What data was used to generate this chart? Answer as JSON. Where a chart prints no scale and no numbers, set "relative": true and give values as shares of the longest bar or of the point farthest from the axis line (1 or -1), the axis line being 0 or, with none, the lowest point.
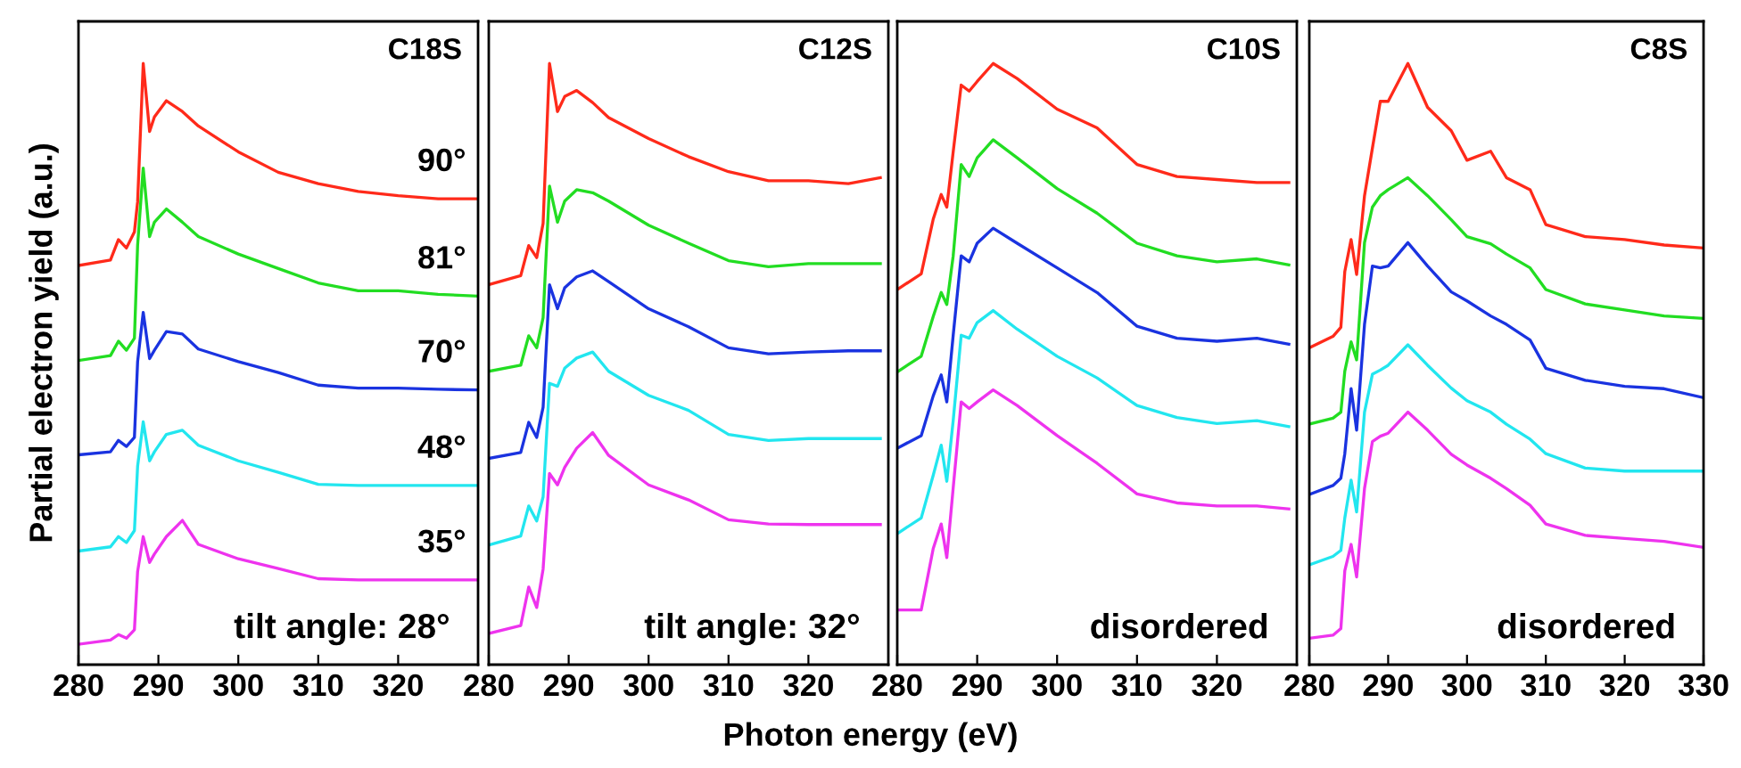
{
  "chart_data": [
    {
      "type": "line",
      "relative": true,
      "xlim": [
        280,
        330
      ],
      "xticks": [
        280,
        290,
        300,
        310,
        320
      ],
      "tick_labels": "x",
      "ylabel": "Partial electron yield (a.u.)",
      "annotations": [
        "C18S",
        "tilt angle: 28°"
      ],
      "line_style": "solid",
      "x": [
        280,
        284,
        285,
        286,
        287,
        287.4,
        288.1,
        288.9,
        289.5,
        291,
        293,
        295,
        300,
        305,
        310,
        315,
        320,
        325,
        330
      ],
      "series": [
        {
          "name": "90°",
          "color": "#ff2a1a",
          "values": [
            0.664,
            0.673,
            0.707,
            0.693,
            0.72,
            0.77,
            1.0,
            0.887,
            0.911,
            0.938,
            0.92,
            0.896,
            0.853,
            0.819,
            0.8,
            0.787,
            0.78,
            0.775,
            0.775
          ]
        },
        {
          "name": "81°",
          "color": "#22dd22",
          "values": [
            0.506,
            0.514,
            0.538,
            0.523,
            0.543,
            0.698,
            0.826,
            0.712,
            0.736,
            0.758,
            0.736,
            0.712,
            0.683,
            0.659,
            0.635,
            0.622,
            0.622,
            0.616,
            0.613
          ]
        },
        {
          "name": "70°",
          "color": "#1a33e0",
          "values": [
            0.349,
            0.354,
            0.373,
            0.363,
            0.378,
            0.504,
            0.586,
            0.509,
            0.523,
            0.554,
            0.55,
            0.525,
            0.504,
            0.486,
            0.465,
            0.46,
            0.46,
            0.458,
            0.457
          ]
        },
        {
          "name": "48°",
          "color": "#22e6ef",
          "values": [
            0.189,
            0.196,
            0.213,
            0.203,
            0.223,
            0.33,
            0.404,
            0.339,
            0.354,
            0.383,
            0.39,
            0.365,
            0.339,
            0.32,
            0.3,
            0.298,
            0.298,
            0.298,
            0.298
          ]
        },
        {
          "name": "35°",
          "color": "#ee33ee",
          "values": [
            0.034,
            0.041,
            0.05,
            0.044,
            0.058,
            0.155,
            0.213,
            0.17,
            0.184,
            0.213,
            0.24,
            0.2,
            0.176,
            0.16,
            0.143,
            0.141,
            0.141,
            0.141,
            0.141
          ]
        }
      ]
    },
    {
      "type": "line",
      "relative": true,
      "xlim": [
        280,
        330
      ],
      "xticks": [
        280,
        290,
        300,
        310,
        320
      ],
      "tick_labels": "x",
      "xlabel": "Photon energy (eV)",
      "annotations": [
        "C12S",
        "tilt angle: 32°"
      ],
      "line_style": "solid",
      "x": [
        280,
        284,
        285,
        286,
        286.8,
        287.6,
        288.6,
        289.5,
        291,
        293,
        295,
        300,
        305,
        310,
        315,
        320,
        325,
        329
      ],
      "series": [
        {
          "color": "#ff2a1a",
          "values": [
            0.632,
            0.647,
            0.697,
            0.677,
            0.734,
            1.0,
            0.92,
            0.945,
            0.955,
            0.935,
            0.91,
            0.875,
            0.845,
            0.82,
            0.805,
            0.805,
            0.8,
            0.81
          ]
        },
        {
          "color": "#22dd22",
          "values": [
            0.488,
            0.498,
            0.547,
            0.527,
            0.577,
            0.796,
            0.736,
            0.771,
            0.79,
            0.785,
            0.771,
            0.731,
            0.701,
            0.672,
            0.662,
            0.667,
            0.667,
            0.667
          ]
        },
        {
          "color": "#1a33e0",
          "values": [
            0.343,
            0.353,
            0.403,
            0.378,
            0.428,
            0.632,
            0.592,
            0.627,
            0.645,
            0.655,
            0.637,
            0.592,
            0.562,
            0.527,
            0.517,
            0.52,
            0.522,
            0.522
          ]
        },
        {
          "color": "#22e6ef",
          "values": [
            0.199,
            0.214,
            0.264,
            0.239,
            0.279,
            0.468,
            0.463,
            0.493,
            0.51,
            0.52,
            0.488,
            0.448,
            0.423,
            0.383,
            0.373,
            0.376,
            0.376,
            0.376
          ]
        },
        {
          "color": "#ee33ee",
          "values": [
            0.052,
            0.065,
            0.129,
            0.095,
            0.159,
            0.318,
            0.299,
            0.328,
            0.36,
            0.386,
            0.348,
            0.299,
            0.274,
            0.241,
            0.234,
            0.233,
            0.233,
            0.233
          ]
        }
      ]
    },
    {
      "type": "line",
      "relative": true,
      "xlim": [
        280,
        330
      ],
      "xticks": [
        280,
        290,
        300,
        310,
        320
      ],
      "tick_labels": "x",
      "annotations": [
        "C10S",
        "disordered"
      ],
      "line_style": "solid",
      "x": [
        280,
        283,
        284.5,
        285.5,
        286.2,
        287,
        288,
        289,
        290,
        292,
        295,
        300,
        305,
        310,
        315,
        320,
        325,
        329
      ],
      "series": [
        {
          "color": "#ff2a1a",
          "values": [
            0.624,
            0.65,
            0.741,
            0.782,
            0.761,
            0.853,
            0.964,
            0.954,
            0.97,
            1.0,
            0.975,
            0.924,
            0.893,
            0.832,
            0.812,
            0.807,
            0.802,
            0.802
          ]
        },
        {
          "color": "#22dd22",
          "values": [
            0.487,
            0.513,
            0.579,
            0.619,
            0.599,
            0.68,
            0.832,
            0.812,
            0.843,
            0.873,
            0.843,
            0.792,
            0.751,
            0.701,
            0.68,
            0.67,
            0.675,
            0.665
          ]
        },
        {
          "color": "#1a33e0",
          "values": [
            0.36,
            0.381,
            0.447,
            0.482,
            0.437,
            0.548,
            0.68,
            0.67,
            0.701,
            0.726,
            0.701,
            0.66,
            0.619,
            0.563,
            0.543,
            0.538,
            0.543,
            0.533
          ]
        },
        {
          "color": "#22e6ef",
          "values": [
            0.218,
            0.244,
            0.315,
            0.365,
            0.305,
            0.406,
            0.548,
            0.543,
            0.569,
            0.589,
            0.558,
            0.513,
            0.477,
            0.431,
            0.411,
            0.401,
            0.406,
            0.396
          ]
        },
        {
          "color": "#ee33ee",
          "values": [
            0.091,
            0.091,
            0.193,
            0.234,
            0.178,
            0.294,
            0.437,
            0.426,
            0.437,
            0.457,
            0.431,
            0.381,
            0.335,
            0.284,
            0.269,
            0.264,
            0.264,
            0.259
          ]
        }
      ]
    },
    {
      "type": "line",
      "relative": true,
      "xlim": [
        280,
        330
      ],
      "xticks": [
        280,
        290,
        300,
        310,
        320,
        330
      ],
      "tick_labels": "x",
      "annotations": [
        "C8S",
        "disordered"
      ],
      "line_style": "solid",
      "x": [
        280,
        283,
        284,
        284.5,
        285.3,
        286,
        287,
        288,
        289,
        290,
        292.5,
        295,
        298,
        300,
        303,
        305,
        308,
        310,
        315,
        320,
        325,
        330
      ],
      "series": [
        {
          "color": "#ff2a1a",
          "values": [
            0.527,
            0.546,
            0.561,
            0.654,
            0.707,
            0.649,
            0.78,
            0.859,
            0.937,
            0.937,
            1.0,
            0.927,
            0.888,
            0.839,
            0.854,
            0.81,
            0.79,
            0.732,
            0.712,
            0.707,
            0.698,
            0.693
          ]
        },
        {
          "color": "#22dd22",
          "values": [
            0.4,
            0.41,
            0.42,
            0.488,
            0.537,
            0.507,
            0.702,
            0.761,
            0.78,
            0.79,
            0.81,
            0.78,
            0.74,
            0.712,
            0.7,
            0.683,
            0.66,
            0.624,
            0.6,
            0.59,
            0.58,
            0.576
          ]
        },
        {
          "color": "#1a33e0",
          "values": [
            0.283,
            0.298,
            0.31,
            0.351,
            0.459,
            0.39,
            0.566,
            0.663,
            0.66,
            0.663,
            0.702,
            0.663,
            0.62,
            0.605,
            0.58,
            0.566,
            0.54,
            0.493,
            0.473,
            0.463,
            0.459,
            0.444
          ]
        },
        {
          "color": "#22e6ef",
          "values": [
            0.166,
            0.18,
            0.19,
            0.244,
            0.307,
            0.254,
            0.42,
            0.483,
            0.49,
            0.498,
            0.532,
            0.498,
            0.46,
            0.439,
            0.42,
            0.4,
            0.375,
            0.351,
            0.327,
            0.322,
            0.322,
            0.322
          ]
        },
        {
          "color": "#ee33ee",
          "values": [
            0.044,
            0.049,
            0.06,
            0.156,
            0.2,
            0.146,
            0.293,
            0.371,
            0.38,
            0.385,
            0.42,
            0.39,
            0.35,
            0.332,
            0.31,
            0.293,
            0.265,
            0.234,
            0.215,
            0.21,
            0.205,
            0.195
          ]
        }
      ]
    }
  ]
}
